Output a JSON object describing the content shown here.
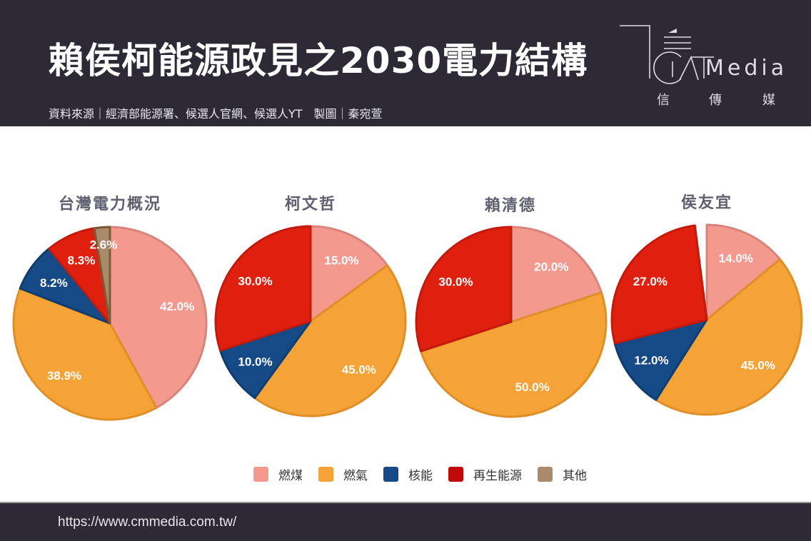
{
  "header": {
    "title": "賴侯柯能源政見之2030電力結構",
    "source": "資料來源｜經濟部能源署、候選人官網、候選人YT　製圖｜秦宛萱",
    "logo": {
      "text": "Media",
      "chinese": [
        "信",
        "傳",
        "媒"
      ]
    }
  },
  "footer": {
    "url": "https://www.cmmedia.com.tw/"
  },
  "chart_data": {
    "type": "pie",
    "title": "賴侯柯能源政見之2030電力結構",
    "legend_position": "bottom",
    "categories": [
      "燃煤",
      "燃氣",
      "核能",
      "再生能源",
      "其他"
    ],
    "colors": {
      "燃煤": "#f4998e",
      "燃氣": "#f5a236",
      "核能": "#154a87",
      "再生能源": "#e0200f",
      "其他": "#a98a6a"
    },
    "pies": [
      {
        "title": "台灣電力概況",
        "values": {
          "燃煤": 42.0,
          "燃氣": 38.9,
          "核能": 8.2,
          "再生能源": 8.3,
          "其他": 2.6
        },
        "labels": {
          "燃煤": "42.0%",
          "燃氣": "38.9%",
          "核能": "8.2%",
          "再生能源": "8.3%",
          "其他": "2.6%"
        }
      },
      {
        "title": "柯文哲",
        "values": {
          "燃煤": 15.0,
          "燃氣": 45.0,
          "核能": 10.0,
          "再生能源": 30.0,
          "其他": 0
        },
        "labels": {
          "燃煤": "15.0%",
          "燃氣": "45.0%",
          "核能": "10.0%",
          "再生能源": "30.0%"
        }
      },
      {
        "title": "賴清德",
        "values": {
          "燃煤": 20.0,
          "燃氣": 50.0,
          "核能": 0,
          "再生能源": 30.0,
          "其他": 0
        },
        "labels": {
          "燃煤": "20.0%",
          "燃氣": "50.0%",
          "再生能源": "30.0%"
        }
      },
      {
        "title": "侯友宜",
        "values": {
          "燃煤": 14.0,
          "燃氣": 45.0,
          "核能": 12.0,
          "再生能源": 27.0,
          "其他": 0
        },
        "labels": {
          "燃煤": "14.0%",
          "燃氣": "45.0%",
          "核能": "12.0%",
          "再生能源": "27.0%"
        }
      }
    ]
  }
}
